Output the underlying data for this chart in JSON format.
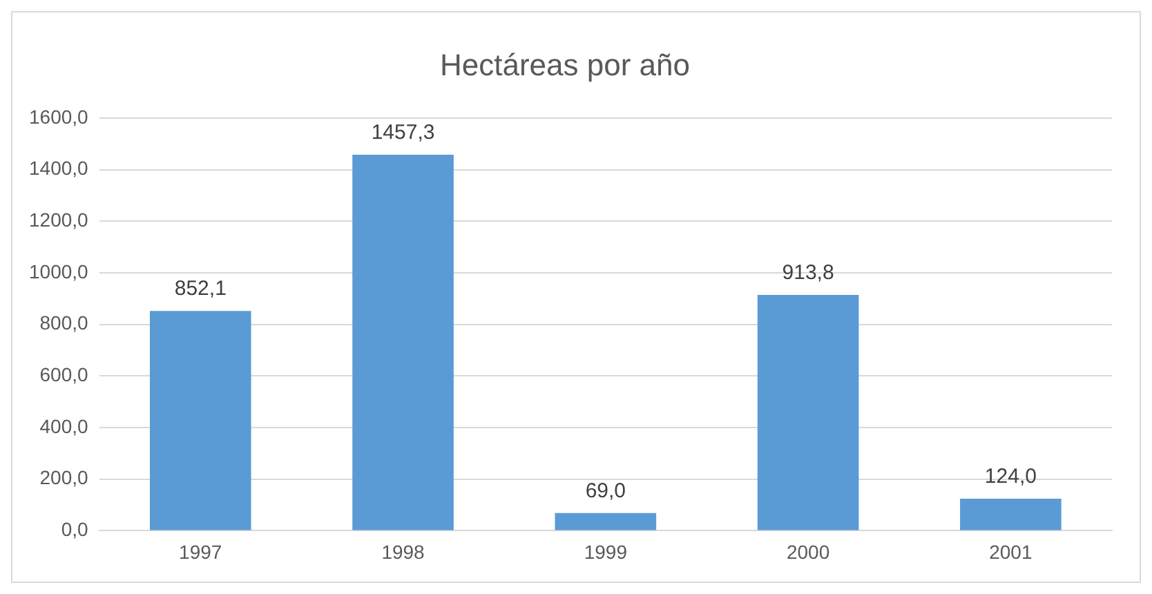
{
  "chart_data": {
    "type": "bar",
    "title": "Hectáreas por año",
    "categories": [
      "1997",
      "1998",
      "1999",
      "2000",
      "2001"
    ],
    "values": [
      852.1,
      1457.3,
      69.0,
      913.8,
      124.0
    ],
    "value_labels": [
      "852,1",
      "1457,3",
      "69,0",
      "913,8",
      "124,0"
    ],
    "color": "#5b9bd5",
    "ylim": [
      0,
      1600
    ],
    "yticks": [
      {
        "value": 0,
        "label": "0,0"
      },
      {
        "value": 200,
        "label": "200,0"
      },
      {
        "value": 400,
        "label": "400,0"
      },
      {
        "value": 600,
        "label": "600,0"
      },
      {
        "value": 800,
        "label": "800,0"
      },
      {
        "value": 1000,
        "label": "1000,0"
      },
      {
        "value": 1200,
        "label": "1200,0"
      },
      {
        "value": 1400,
        "label": "1400,0"
      },
      {
        "value": 1600,
        "label": "1600,0"
      }
    ],
    "grid": "y",
    "legend": false
  }
}
